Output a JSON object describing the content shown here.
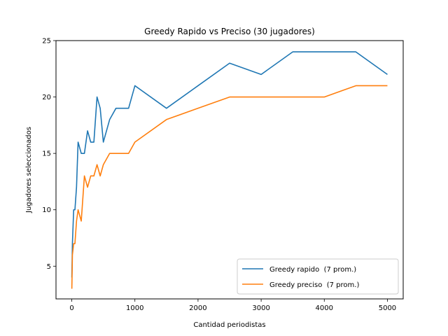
{
  "chart_data": {
    "type": "line",
    "title": "Greedy Rapido vs Preciso (30 jugadores)",
    "xlabel": "Cantidad periodistas",
    "ylabel": "Jugadores seleccionados",
    "xlim": [
      -250,
      5250
    ],
    "ylim": [
      2.1,
      25
    ],
    "xticks": [
      0,
      1000,
      2000,
      3000,
      4000,
      5000
    ],
    "yticks": [
      5,
      10,
      15,
      20,
      25
    ],
    "grid": false,
    "legend_position": "lower-right",
    "series": [
      {
        "name": "Greedy rapido  (7 prom.)",
        "color": "#1f77b4",
        "x": [
          1,
          10,
          30,
          50,
          75,
          100,
          150,
          200,
          250,
          300,
          350,
          400,
          450,
          500,
          600,
          700,
          800,
          900,
          1000,
          1500,
          2000,
          2500,
          3000,
          3500,
          4000,
          4500,
          5000
        ],
        "y": [
          4,
          7,
          10,
          10,
          12,
          16,
          15,
          15,
          17,
          16,
          16,
          20,
          19,
          16,
          18,
          19,
          19,
          19,
          21,
          19,
          21,
          23,
          22,
          24,
          24,
          24,
          22
        ]
      },
      {
        "name": "Greedy preciso  (7 prom.)",
        "color": "#ff7f0e",
        "x": [
          1,
          10,
          30,
          50,
          75,
          100,
          150,
          200,
          250,
          300,
          350,
          400,
          450,
          500,
          600,
          700,
          800,
          900,
          1000,
          1500,
          2000,
          2500,
          3000,
          3500,
          4000,
          4500,
          5000
        ],
        "y": [
          3,
          6,
          7,
          7,
          9,
          10,
          9,
          13,
          12,
          13,
          13,
          14,
          13,
          14,
          15,
          15,
          15,
          15,
          16,
          18,
          19,
          20,
          20,
          20,
          20,
          21,
          21
        ]
      }
    ]
  }
}
